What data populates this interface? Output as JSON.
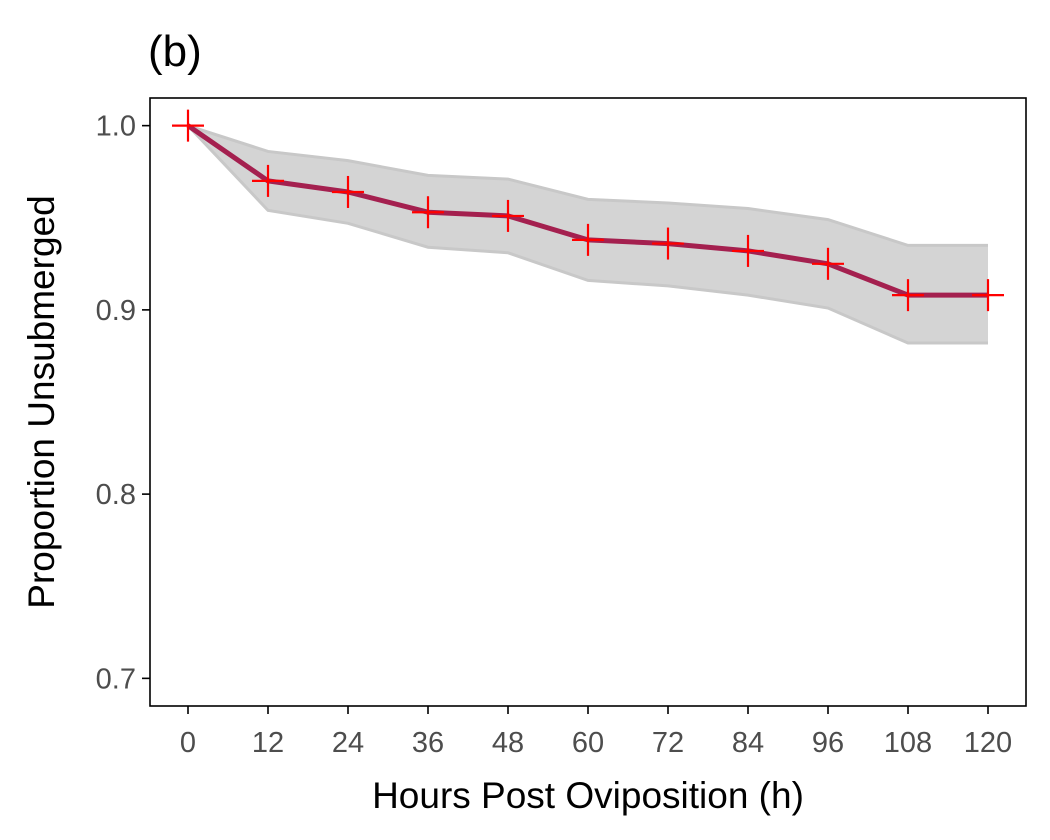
{
  "chart_data": {
    "type": "line",
    "title": "(b)",
    "xlabel": "Hours Post Oviposition (h)",
    "ylabel": "Proportion Unsubmerged",
    "x": [
      0,
      12,
      24,
      36,
      48,
      60,
      72,
      84,
      96,
      108,
      120
    ],
    "x_ticks": [
      "0",
      "12",
      "24",
      "36",
      "48",
      "60",
      "72",
      "84",
      "96",
      "108",
      "120"
    ],
    "y_ticks": [
      "0.7",
      "0.8",
      "0.9",
      "1.0"
    ],
    "xlim": [
      -5.7,
      125.7
    ],
    "ylim": [
      0.685,
      1.015
    ],
    "series": [
      {
        "values": [
          1.0,
          0.97,
          0.964,
          0.953,
          0.951,
          0.938,
          0.936,
          0.932,
          0.925,
          0.908,
          0.908
        ],
        "lower": [
          1.0,
          0.954,
          0.947,
          0.934,
          0.931,
          0.916,
          0.913,
          0.908,
          0.901,
          0.882,
          0.882
        ],
        "upper": [
          1.0,
          0.986,
          0.981,
          0.973,
          0.971,
          0.96,
          0.958,
          0.955,
          0.949,
          0.935,
          0.935
        ]
      }
    ],
    "grid": false,
    "legend": "none",
    "colors": {
      "line": "#a4204f",
      "marker": "#ff0000",
      "band_fill": "#d4d4d4",
      "band_edge": "#c8c8c8",
      "axis": "#000000",
      "tick_text": "#4d4d4d"
    }
  }
}
